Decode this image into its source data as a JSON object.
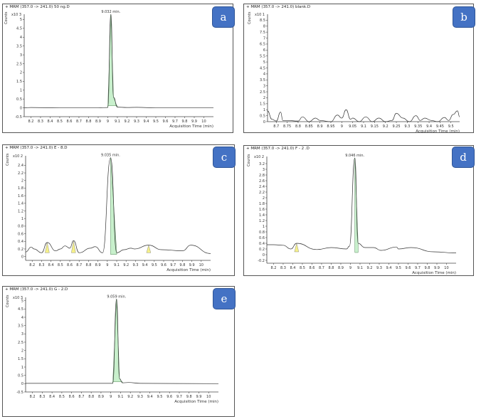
{
  "panels": [
    {
      "id": "a",
      "badge": "a",
      "title": "+ MRM (357.0 -> 241.0) 50 ng.D",
      "ylabel": "Counts",
      "exponent": "x10 3",
      "xlabel": "Acquisition Time (min)",
      "peak_label": "9.032 min.",
      "yticks": [
        "5",
        "4.5",
        "4",
        "3.5",
        "3",
        "2.5",
        "2",
        "1.5",
        "1",
        "0.5",
        "0",
        "-0.5"
      ],
      "xticks": [
        "8.2",
        "8.3",
        "8.4",
        "8.5",
        "8.6",
        "8.7",
        "8.8",
        "8.9",
        "9",
        "9.1",
        "9.2",
        "9.3",
        "9.4",
        "9.5",
        "9.6",
        "9.7",
        "9.8",
        "9.9",
        "10"
      ]
    },
    {
      "id": "b",
      "badge": "b",
      "title": "+ MRM (357.0 -> 241.0) blank.D",
      "ylabel": "Counts",
      "exponent": "x10 1",
      "xlabel": "Acquisition Time (min)",
      "peak_label": "",
      "yticks": [
        "8.5",
        "8",
        "7.5",
        "7",
        "6.5",
        "6",
        "5.5",
        "5",
        "4.5",
        "4",
        "3.5",
        "3",
        "2.5",
        "2",
        "1.5",
        "1",
        "0.5",
        "0"
      ],
      "xticks": [
        "8.7",
        "8.75",
        "8.8",
        "8.85",
        "8.9",
        "8.95",
        "9",
        "9.05",
        "9.1",
        "9.15",
        "9.2",
        "9.25",
        "9.3",
        "9.35",
        "9.4",
        "9.45",
        "9.5"
      ]
    },
    {
      "id": "c",
      "badge": "c",
      "title": "+ MRM (357.0 -> 241.0) E - 8.D",
      "ylabel": "Counts",
      "exponent": "x10 2",
      "xlabel": "Acquisition Time (min)",
      "peak_label": "9.035 min.",
      "yticks": [
        "2.4",
        "2.2",
        "2",
        "1.8",
        "1.6",
        "1.4",
        "1.2",
        "1",
        "0.8",
        "0.6",
        "0.4",
        "0.2",
        "0"
      ],
      "xticks": [
        "8.2",
        "8.3",
        "8.4",
        "8.5",
        "8.6",
        "8.7",
        "8.8",
        "8.9",
        "9",
        "9.1",
        "9.2",
        "9.3",
        "9.4",
        "9.5",
        "9.6",
        "9.7",
        "9.8",
        "9.9",
        "10"
      ]
    },
    {
      "id": "d",
      "badge": "d",
      "title": "+ MRM (357.0 -> 241.0) F - 2 .D",
      "ylabel": "Counts",
      "exponent": "x10 2",
      "xlabel": "Acquisition Time (min)",
      "peak_label": "9.046 min.",
      "yticks": [
        "3.2",
        "3",
        "2.8",
        "2.6",
        "2.4",
        "2.2",
        "2",
        "1.8",
        "1.6",
        "1.4",
        "1.2",
        "1",
        "0.8",
        "0.6",
        "0.4",
        "0.2",
        "0",
        "-0.2"
      ],
      "xticks": [
        "8.2",
        "8.3",
        "8.4",
        "8.5",
        "8.6",
        "8.7",
        "8.8",
        "8.9",
        "9",
        "9.1",
        "9.2",
        "9.3",
        "9.4",
        "9.5",
        "9.6",
        "9.7",
        "9.8",
        "9.9",
        "10"
      ]
    },
    {
      "id": "e",
      "badge": "e",
      "title": "+ MRM (357.0 -> 241.0) G - 2.D",
      "ylabel": "Counts",
      "exponent": "x10 3",
      "xlabel": "Acquisition Time (min)",
      "peak_label": "9.059 min.",
      "yticks": [
        "5",
        "4.5",
        "4",
        "3.5",
        "3",
        "2.5",
        "2",
        "1.5",
        "1",
        "0.5",
        "0",
        "-0.5"
      ],
      "xticks": [
        "8.2",
        "8.3",
        "8.4",
        "8.5",
        "8.6",
        "8.7",
        "8.8",
        "8.9",
        "9",
        "9.1",
        "9.2",
        "9.3",
        "9.4",
        "9.5",
        "9.6",
        "9.7",
        "9.8",
        "9.9",
        "10"
      ]
    }
  ],
  "colors": {
    "badge": "#4472c4",
    "peak_fill": "#c8f0cc",
    "minor_peak_fill": "#f5f08a",
    "trace": "#333333"
  },
  "chart_data": [
    {
      "type": "line",
      "title": "+ MRM (357.0 -> 241.0) 50 ng.D",
      "xlabel": "Acquisition Time (min)",
      "ylabel": "Counts (x10^3)",
      "xlim": [
        8.13,
        10.1
      ],
      "ylim": [
        -0.5,
        5.3
      ],
      "grid": false,
      "annotations": [
        {
          "x": 9.032,
          "text": "9.032 min."
        }
      ],
      "x": [
        8.13,
        8.2,
        8.5,
        8.9,
        9.0,
        9.032,
        9.06,
        9.1,
        9.2,
        9.3,
        9.5,
        10.1
      ],
      "values": [
        0.0,
        0.02,
        0.0,
        0.0,
        0.02,
        5.3,
        0.6,
        0.04,
        0.02,
        0.03,
        0.0,
        0.0
      ],
      "integrated_peaks": [
        {
          "start": 9.0,
          "end": 9.1,
          "apex": 9.032
        }
      ]
    },
    {
      "type": "line",
      "title": "+ MRM (357.0 -> 241.0) blank.D",
      "xlabel": "Acquisition Time (min)",
      "ylabel": "Counts (x10^1)",
      "xlim": [
        8.66,
        9.54
      ],
      "ylim": [
        0,
        9
      ],
      "grid": false,
      "x": [
        8.66,
        8.68,
        8.7,
        8.72,
        8.73,
        8.75,
        8.8,
        8.82,
        8.85,
        8.88,
        8.9,
        8.95,
        8.98,
        9.0,
        9.02,
        9.04,
        9.05,
        9.08,
        9.11,
        9.14,
        9.17,
        9.2,
        9.23,
        9.25,
        9.28,
        9.31,
        9.34,
        9.36,
        9.38,
        9.41,
        9.44,
        9.47,
        9.49,
        9.51,
        9.53,
        9.54
      ],
      "values": [
        0.9,
        0.2,
        0.05,
        0.8,
        0.1,
        0.1,
        0.05,
        0.4,
        0.0,
        0.3,
        0.1,
        0.0,
        0.55,
        0.3,
        1.0,
        0.2,
        0.3,
        0.0,
        0.4,
        0.0,
        0.3,
        0.0,
        0.1,
        0.7,
        0.3,
        0.0,
        0.5,
        0.1,
        0.3,
        0.1,
        0.0,
        0.35,
        0.1,
        0.6,
        0.9,
        0.4
      ]
    },
    {
      "type": "line",
      "title": "+ MRM (357.0 -> 241.0) E - 8.D",
      "xlabel": "Acquisition Time (min)",
      "ylabel": "Counts (x10^2)",
      "xlim": [
        8.13,
        10.1
      ],
      "ylim": [
        -0.1,
        2.65
      ],
      "grid": false,
      "annotations": [
        {
          "x": 9.035,
          "text": "9.035 min."
        }
      ],
      "x": [
        8.13,
        8.19,
        8.22,
        8.3,
        8.36,
        8.45,
        8.5,
        8.55,
        8.6,
        8.64,
        8.7,
        8.82,
        8.87,
        8.95,
        9.035,
        9.1,
        9.18,
        9.25,
        9.29,
        9.44,
        9.58,
        9.8,
        9.89,
        10.1
      ],
      "values": [
        0.12,
        0.25,
        0.2,
        0.1,
        0.37,
        0.15,
        0.2,
        0.28,
        0.22,
        0.42,
        0.1,
        0.22,
        0.26,
        0.1,
        2.6,
        0.1,
        0.18,
        0.22,
        0.2,
        0.3,
        0.18,
        0.15,
        0.3,
        0.08
      ],
      "integrated_peaks": [
        {
          "start": 9.0,
          "end": 9.1,
          "apex": 9.035
        }
      ],
      "minor_integrated_peaks": [
        8.36,
        8.64,
        9.44
      ]
    },
    {
      "type": "line",
      "title": "+ MRM (357.0 -> 241.0) F - 2 .D",
      "xlabel": "Acquisition Time (min)",
      "ylabel": "Counts (x10^2)",
      "xlim": [
        8.13,
        10.1
      ],
      "ylim": [
        -0.3,
        3.45
      ],
      "grid": false,
      "annotations": [
        {
          "x": 9.046,
          "text": "9.046 min."
        }
      ],
      "x": [
        8.13,
        8.2,
        8.3,
        8.38,
        8.44,
        8.65,
        8.8,
        8.96,
        8.99,
        9.046,
        9.08,
        9.15,
        9.24,
        9.32,
        9.48,
        9.5,
        9.63,
        9.87,
        10.1
      ],
      "values": [
        0.35,
        0.35,
        0.33,
        0.2,
        0.4,
        0.18,
        0.25,
        0.2,
        0.3,
        3.4,
        0.4,
        0.25,
        0.25,
        0.15,
        0.27,
        0.2,
        0.25,
        0.1,
        0.06
      ],
      "integrated_peaks": [
        {
          "start": 9.0,
          "end": 9.1,
          "apex": 9.046
        }
      ],
      "minor_integrated_peaks": [
        8.44
      ]
    },
    {
      "type": "line",
      "title": "+ MRM (357.0 -> 241.0) G - 2.D",
      "xlabel": "Acquisition Time (min)",
      "ylabel": "Counts (x10^3)",
      "xlim": [
        8.13,
        10.1
      ],
      "ylim": [
        -0.5,
        5.2
      ],
      "grid": false,
      "annotations": [
        {
          "x": 9.059,
          "text": "9.059 min."
        }
      ],
      "x": [
        8.13,
        8.5,
        9.02,
        9.059,
        9.09,
        9.12,
        9.18,
        9.3,
        10.1
      ],
      "values": [
        0.02,
        0.02,
        0.02,
        5.1,
        0.3,
        0.05,
        0.07,
        0.02,
        0.0
      ],
      "integrated_peaks": [
        {
          "start": 9.02,
          "end": 9.13,
          "apex": 9.059
        }
      ]
    }
  ]
}
